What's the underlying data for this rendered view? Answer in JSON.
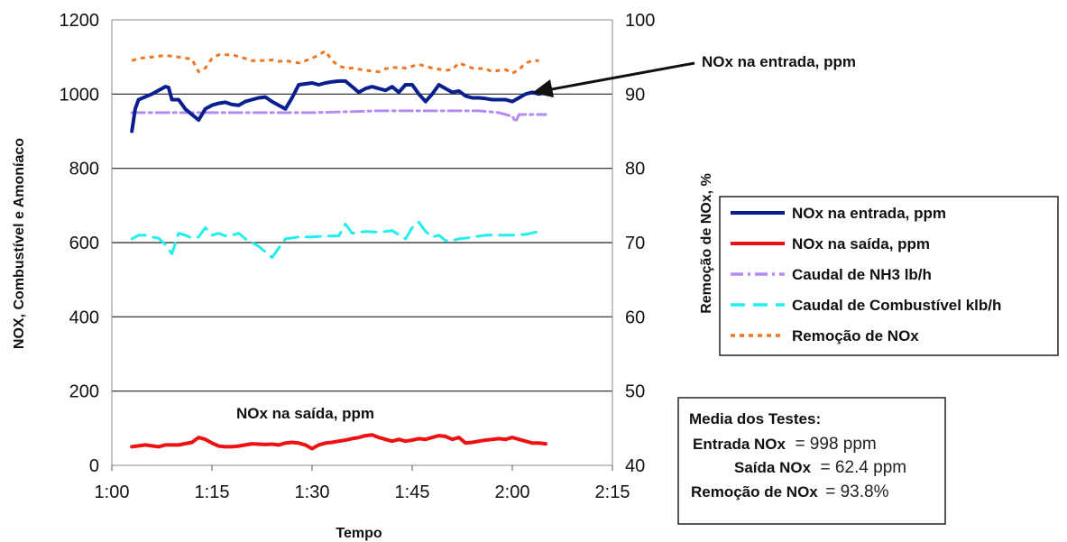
{
  "chart_data": {
    "type": "line",
    "title": "",
    "xlabel": "Tempo",
    "ylabel_left": "NOX, Combustível e Amoníaco",
    "ylabel_right": "Remoção de NOx, %",
    "x_ticks": [
      "1:00",
      "1:15",
      "1:30",
      "1:45",
      "2:00",
      "2:15"
    ],
    "y_left_ticks": [
      "0",
      "200",
      "400",
      "600",
      "800",
      "1000",
      "1200"
    ],
    "y_right_ticks": [
      "40",
      "50",
      "60",
      "70",
      "80",
      "90",
      "100"
    ],
    "x_range_minutes": [
      60,
      135
    ],
    "y_left_range": [
      0,
      1200
    ],
    "y_right_range": [
      40,
      100
    ],
    "grid": "horizontal",
    "legend_position": "right",
    "series": [
      {
        "name": "NOx na entrada, ppm",
        "axis": "left",
        "color": "#0a1f8f",
        "style": "solid",
        "x": [
          63,
          63.5,
          64,
          66,
          67.5,
          68,
          68.5,
          69,
          70,
          71,
          72,
          73,
          74,
          75,
          76,
          77,
          78,
          79,
          80,
          81,
          82,
          83,
          84,
          85,
          86,
          87,
          88,
          90,
          91,
          92,
          93,
          94,
          95,
          96,
          97,
          98,
          99,
          100,
          101,
          102,
          103,
          104,
          105,
          106,
          107,
          108,
          109,
          110,
          111,
          112,
          113,
          114,
          115,
          116,
          117,
          118,
          119,
          120,
          121,
          122,
          123,
          124,
          125
        ],
        "y": [
          900,
          960,
          985,
          1000,
          1015,
          1020,
          1018,
          985,
          985,
          960,
          945,
          930,
          960,
          970,
          975,
          978,
          972,
          970,
          980,
          985,
          990,
          992,
          980,
          970,
          960,
          990,
          1025,
          1030,
          1025,
          1030,
          1033,
          1035,
          1035,
          1020,
          1005,
          1015,
          1020,
          1015,
          1010,
          1020,
          1005,
          1025,
          1025,
          1000,
          980,
          1000,
          1025,
          1015,
          1005,
          1008,
          995,
          990,
          990,
          988,
          985,
          985,
          985,
          980,
          990,
          1000,
          1005,
          1000,
          1005
        ]
      },
      {
        "name": "NOx na saída, ppm",
        "axis": "left",
        "color": "#ee1111",
        "style": "solid",
        "x": [
          63,
          65,
          67,
          68,
          70,
          72,
          73,
          74,
          75,
          76,
          77,
          78,
          79,
          80,
          81,
          82,
          83,
          84,
          85,
          86,
          87,
          88,
          89,
          90,
          91,
          92,
          93,
          94,
          95,
          96,
          97,
          98,
          99,
          100,
          101,
          102,
          103,
          104,
          105,
          106,
          107,
          108,
          109,
          110,
          111,
          112,
          113,
          114,
          115,
          116,
          117,
          118,
          119,
          120,
          121,
          122,
          123,
          124,
          125
        ],
        "y": [
          50,
          55,
          50,
          55,
          55,
          62,
          75,
          70,
          60,
          52,
          50,
          50,
          52,
          55,
          58,
          57,
          56,
          57,
          55,
          60,
          62,
          60,
          55,
          45,
          55,
          60,
          62,
          65,
          68,
          72,
          75,
          80,
          82,
          75,
          70,
          65,
          70,
          65,
          68,
          72,
          70,
          75,
          80,
          78,
          70,
          75,
          60,
          62,
          65,
          68,
          70,
          72,
          70,
          75,
          70,
          65,
          60,
          60,
          58
        ]
      },
      {
        "name": "Caudal de NH3 lb/h",
        "axis": "left",
        "color": "#b48cf0",
        "style": "dashdot",
        "x": [
          63,
          70,
          80,
          90,
          100,
          110,
          115,
          118,
          119,
          120,
          120.5,
          121,
          125
        ],
        "y": [
          950,
          950,
          950,
          950,
          955,
          955,
          955,
          950,
          945,
          940,
          925,
          945,
          945
        ]
      },
      {
        "name": "Caudal de Combustível klb/h",
        "axis": "left",
        "color": "#22eeee",
        "style": "dashed",
        "x": [
          63,
          64,
          65,
          66,
          67,
          68,
          69,
          70,
          71,
          72,
          73,
          74,
          75,
          76,
          77,
          78,
          79,
          80,
          81,
          82,
          84,
          86,
          88,
          90,
          92,
          94,
          95,
          96,
          98,
          100,
          102,
          104,
          105,
          106,
          107,
          108,
          109,
          110,
          111,
          112,
          113,
          114,
          116,
          118,
          120,
          122,
          124
        ],
        "y": [
          610,
          620,
          620,
          615,
          612,
          595,
          570,
          625,
          620,
          612,
          615,
          640,
          620,
          625,
          618,
          620,
          625,
          610,
          600,
          590,
          560,
          610,
          615,
          615,
          618,
          618,
          650,
          625,
          630,
          628,
          632,
          610,
          640,
          655,
          630,
          615,
          620,
          605,
          605,
          610,
          612,
          615,
          620,
          620,
          620,
          622,
          630
        ]
      },
      {
        "name": "Remoção de NOx",
        "axis": "right",
        "color": "#ee7722",
        "style": "dotted",
        "x": [
          63,
          64,
          66,
          68,
          70,
          72,
          73,
          74,
          75,
          76,
          78,
          80,
          81,
          82,
          84,
          85,
          86,
          88,
          90,
          92,
          93,
          94,
          95,
          96,
          98,
          100,
          101,
          102,
          104,
          106,
          108,
          110,
          111,
          112,
          114,
          116,
          117,
          118,
          119,
          120,
          121,
          122,
          123,
          124
        ],
        "y": [
          94.5,
          94.8,
          95,
          95.2,
          95,
          94.7,
          93,
          93.5,
          94.8,
          95.3,
          95.3,
          94.8,
          94.5,
          94.5,
          94.6,
          94.4,
          94.5,
          94.2,
          94.8,
          95.8,
          94.5,
          93.8,
          93.5,
          93.5,
          93.2,
          93,
          93.4,
          93.6,
          93.5,
          94,
          93.5,
          93.2,
          93.3,
          94.2,
          93.5,
          93.4,
          93,
          93.2,
          93.3,
          92.8,
          93.3,
          94.2,
          94.5,
          94.5
        ]
      }
    ],
    "annotations": [
      {
        "text": "NOx na entrada, ppm",
        "arrow_to_series": "NOx na entrada, ppm"
      },
      {
        "text": "NOx na saída, ppm"
      }
    ]
  },
  "legend": {
    "items": [
      {
        "label": "NOx na entrada, ppm",
        "color": "#0a1f8f",
        "style": "solid"
      },
      {
        "label": "NOx na saída, ppm",
        "color": "#ee1111",
        "style": "solid"
      },
      {
        "label": "Caudal de NH3 lb/h",
        "color": "#b48cf0",
        "style": "dashdot"
      },
      {
        "label": "Caudal de Combustível klb/h",
        "color": "#22eeee",
        "style": "dashed"
      },
      {
        "label": "Remoção de NOx",
        "color": "#ee7722",
        "style": "dotted"
      }
    ]
  },
  "stats_box": {
    "title": "Media dos Testes:",
    "rows": [
      {
        "label": "Entrada NOx",
        "value": "= 998 ppm"
      },
      {
        "label": "Saída NOx",
        "value": "= 62.4 ppm"
      },
      {
        "label": "Remoção de NOx",
        "value": " = 93.8%"
      }
    ]
  }
}
